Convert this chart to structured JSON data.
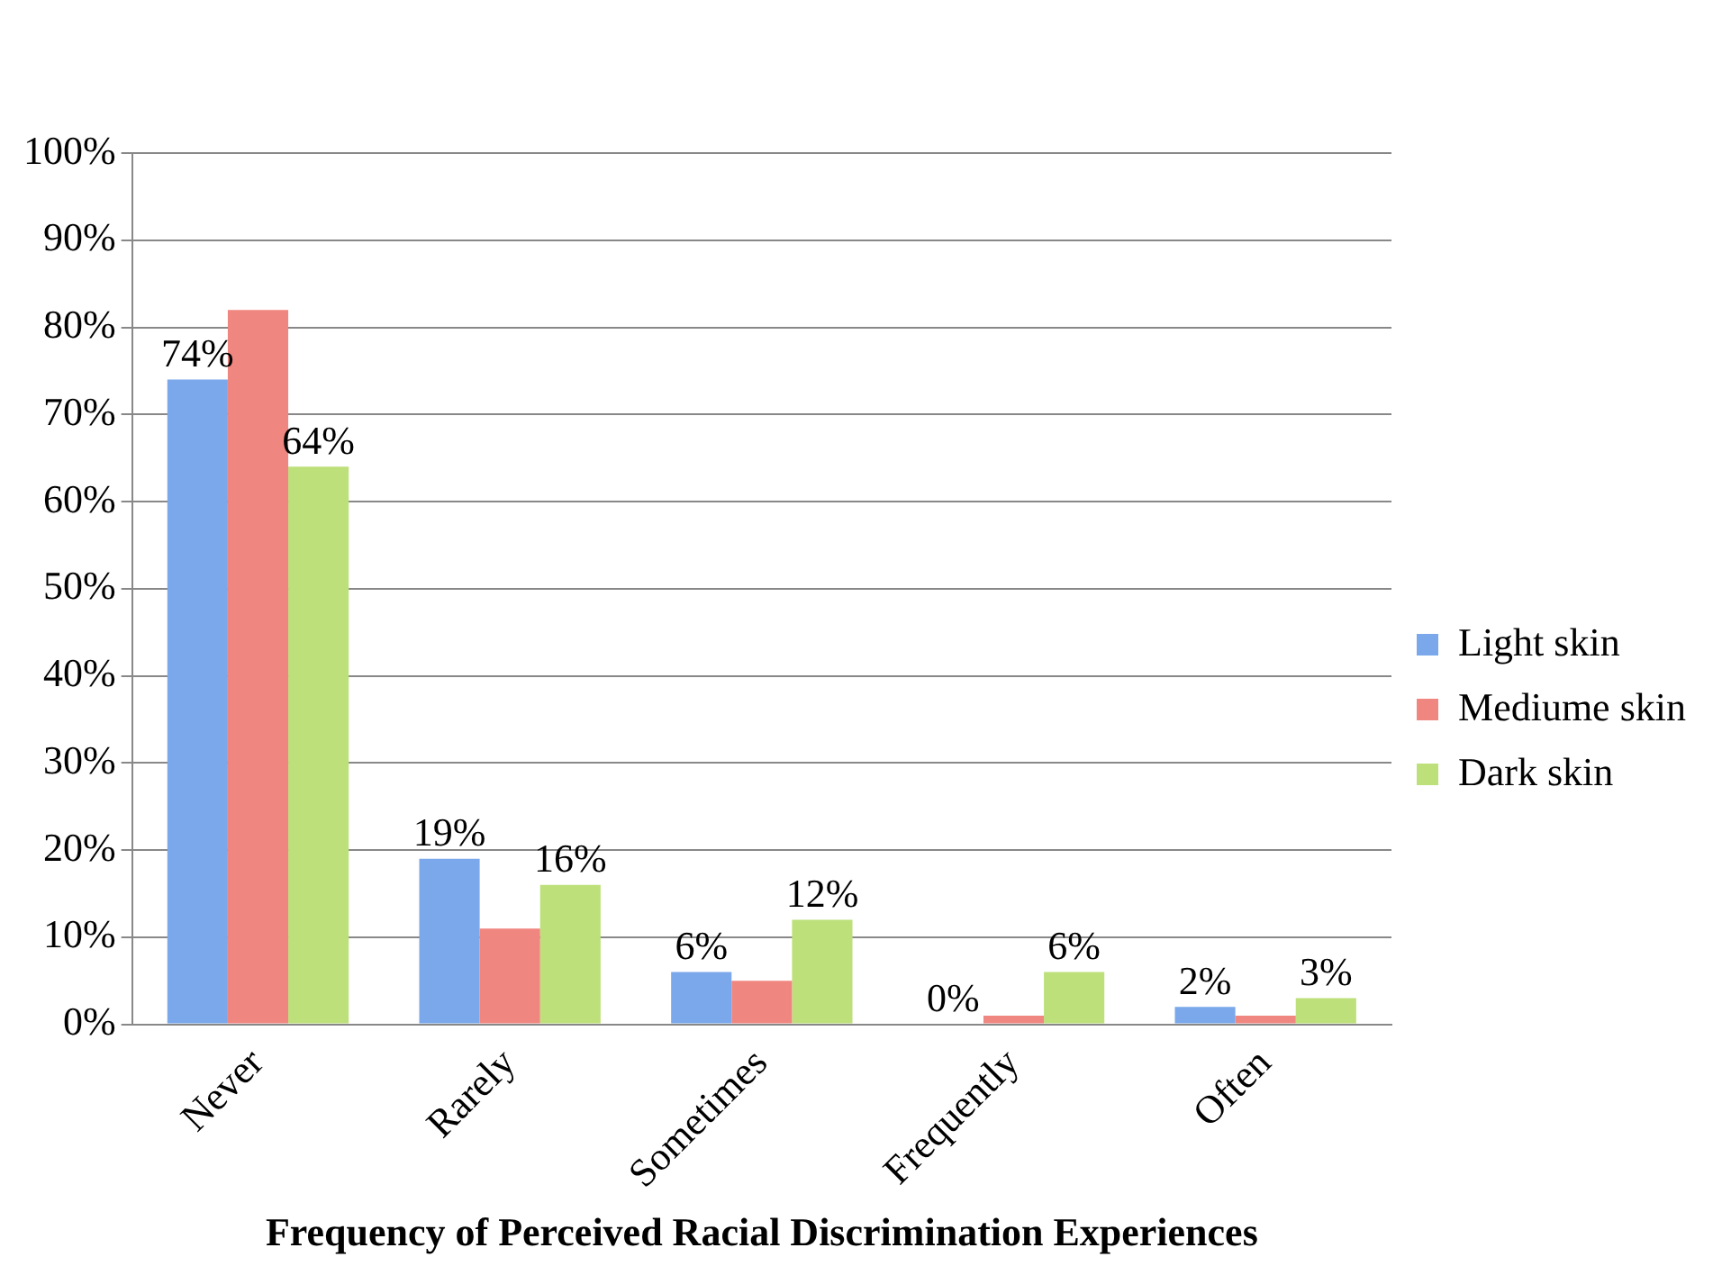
{
  "chart_data": {
    "type": "bar",
    "xlabel": "Frequency of Perceived Racial Discrimination Experiences",
    "categories": [
      "Never",
      "Rarely",
      "Sometimes",
      "Frequently",
      "Often"
    ],
    "series": [
      {
        "name": "Light skin",
        "color": "#7aa8ea",
        "values": [
          74,
          19,
          6,
          0,
          2
        ],
        "value_labels": [
          "74%",
          "19%",
          "6%",
          "0%",
          "2%"
        ]
      },
      {
        "name": "Mediume skin",
        "color": "#f08680",
        "values": [
          82,
          11,
          5,
          1,
          1
        ]
      },
      {
        "name": "Dark skin",
        "color": "#bde07a",
        "values": [
          64,
          16,
          12,
          6,
          3
        ],
        "value_labels": [
          "64%",
          "16%",
          "12%",
          "6%",
          "3%"
        ]
      }
    ],
    "ylim": [
      0,
      100
    ],
    "yticks": [
      {
        "value": 0,
        "label": "0%"
      },
      {
        "value": 10,
        "label": "10%"
      },
      {
        "value": 20,
        "label": "20%"
      },
      {
        "value": 30,
        "label": "30%"
      },
      {
        "value": 40,
        "label": "40%"
      },
      {
        "value": 50,
        "label": "50%"
      },
      {
        "value": 60,
        "label": "60%"
      },
      {
        "value": 70,
        "label": "70%"
      },
      {
        "value": 80,
        "label": "80%"
      },
      {
        "value": 90,
        "label": "90%"
      },
      {
        "value": 100,
        "label": "100%"
      }
    ],
    "grid": "y",
    "legend": "right"
  }
}
